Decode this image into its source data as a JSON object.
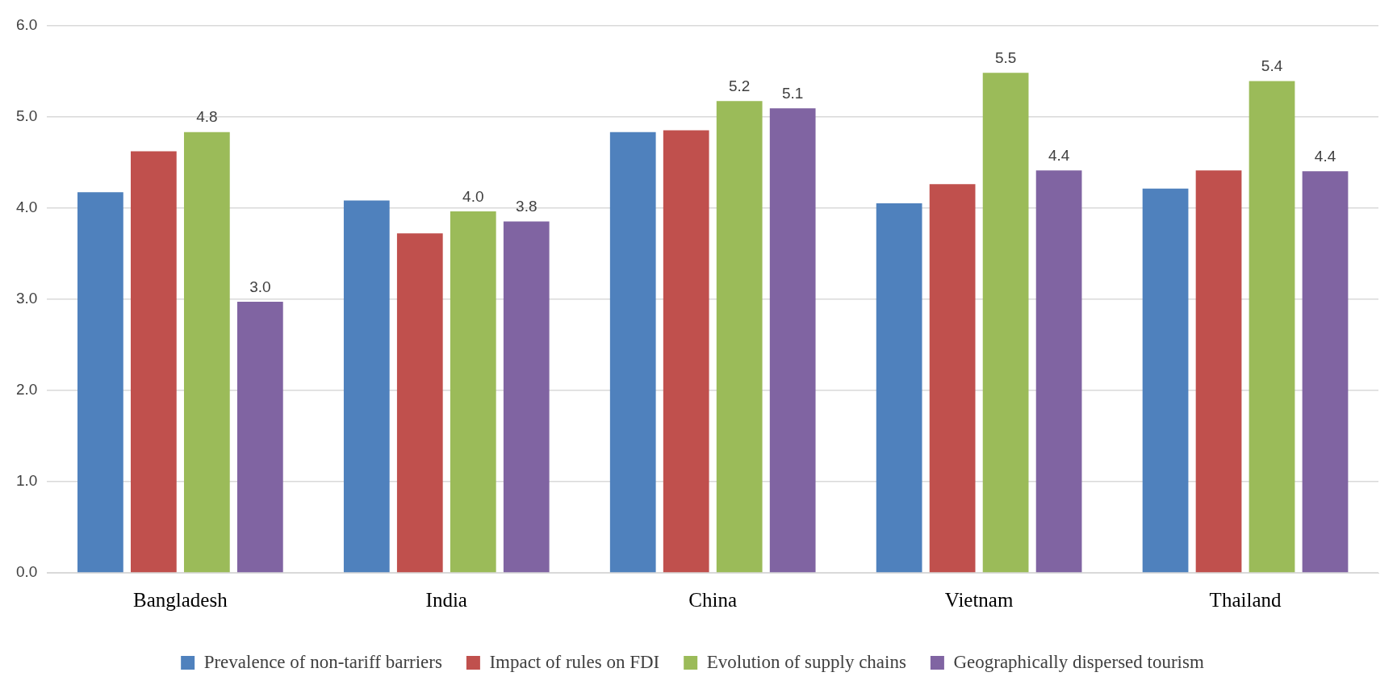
{
  "chart_data": {
    "type": "bar",
    "categories": [
      "Bangladesh",
      "India",
      "China",
      "Vietnam",
      "Thailand"
    ],
    "series": [
      {
        "name": "Prevalence of non-tariff barriers",
        "color": "#4f81bd",
        "values": [
          4.17,
          4.08,
          4.83,
          4.05,
          4.21
        ]
      },
      {
        "name": "Impact of rules on FDI",
        "color": "#c0504d",
        "values": [
          4.62,
          3.72,
          4.85,
          4.26,
          4.41
        ]
      },
      {
        "name": "Evolution of supply chains",
        "color": "#9bbb59",
        "values": [
          4.83,
          3.96,
          5.17,
          5.48,
          5.39
        ],
        "value_labels": [
          "4.8",
          "4.0",
          "5.2",
          "5.5",
          "5.4"
        ]
      },
      {
        "name": "Geographically dispersed tourism",
        "color": "#8064a2",
        "values": [
          2.97,
          3.85,
          5.09,
          4.41,
          4.4
        ],
        "value_labels": [
          "3.0",
          "3.8",
          "5.1",
          "4.4",
          "4.4"
        ]
      }
    ],
    "ylim": [
      0,
      6
    ],
    "yticks": [
      {
        "value": 0,
        "label": "0.0"
      },
      {
        "value": 1,
        "label": "1.0"
      },
      {
        "value": 2,
        "label": "2.0"
      },
      {
        "value": 3,
        "label": "3.0"
      },
      {
        "value": 4,
        "label": "4.0"
      },
      {
        "value": 5,
        "label": "5.0"
      },
      {
        "value": 6,
        "label": "6.0"
      }
    ],
    "grid": "y",
    "legend": "bottom"
  }
}
